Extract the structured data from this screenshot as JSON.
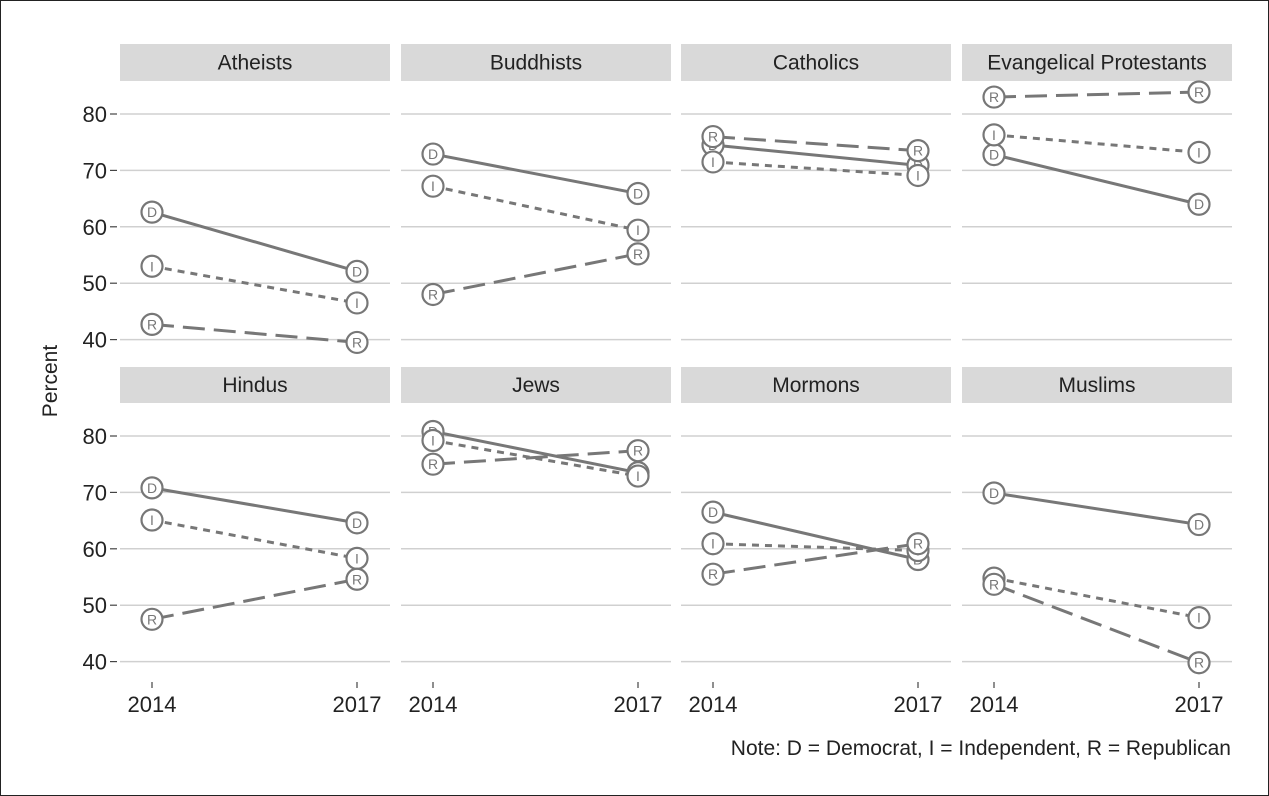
{
  "chart_data": {
    "type": "line",
    "ylabel": "Percent",
    "x": [
      "2014",
      "2017"
    ],
    "ylim": [
      40,
      85
    ],
    "yticks": [
      40,
      50,
      60,
      70,
      80
    ],
    "grid": true,
    "series_styles": {
      "D": {
        "dash": "",
        "color": "#777777"
      },
      "I": {
        "dash": "7,6",
        "color": "#777777"
      },
      "R": {
        "dash": "22,9",
        "color": "#777777"
      }
    },
    "panels": [
      {
        "title": "Atheists",
        "series": [
          {
            "name": "D",
            "values": [
              62.6,
              52.1
            ]
          },
          {
            "name": "I",
            "values": [
              53.0,
              46.5
            ]
          },
          {
            "name": "R",
            "values": [
              42.7,
              39.5
            ]
          }
        ]
      },
      {
        "title": "Buddhists",
        "series": [
          {
            "name": "D",
            "values": [
              72.9,
              65.9
            ]
          },
          {
            "name": "I",
            "values": [
              67.2,
              59.4
            ]
          },
          {
            "name": "R",
            "values": [
              48.0,
              55.2
            ]
          }
        ]
      },
      {
        "title": "Catholics",
        "series": [
          {
            "name": "D",
            "values": [
              74.5,
              70.9
            ]
          },
          {
            "name": "I",
            "values": [
              71.5,
              69.1
            ]
          },
          {
            "name": "R",
            "values": [
              76.0,
              73.5
            ]
          }
        ]
      },
      {
        "title": "Evangelical Protestants",
        "series": [
          {
            "name": "D",
            "values": [
              72.8,
              64.0
            ]
          },
          {
            "name": "I",
            "values": [
              76.3,
              73.2
            ]
          },
          {
            "name": "R",
            "values": [
              83.0,
              83.9
            ]
          }
        ]
      },
      {
        "title": "Hindus",
        "series": [
          {
            "name": "D",
            "values": [
              70.8,
              64.6
            ]
          },
          {
            "name": "I",
            "values": [
              65.1,
              58.3
            ]
          },
          {
            "name": "R",
            "values": [
              47.5,
              54.6
            ]
          }
        ]
      },
      {
        "title": "Jews",
        "series": [
          {
            "name": "D",
            "values": [
              80.8,
              73.5
            ]
          },
          {
            "name": "I",
            "values": [
              79.2,
              72.9
            ]
          },
          {
            "name": "R",
            "values": [
              75.0,
              77.4
            ]
          }
        ]
      },
      {
        "title": "Mormons",
        "series": [
          {
            "name": "D",
            "values": [
              66.5,
              58.1
            ]
          },
          {
            "name": "I",
            "values": [
              60.9,
              59.7
            ]
          },
          {
            "name": "R",
            "values": [
              55.5,
              60.9
            ]
          }
        ]
      },
      {
        "title": "Muslims",
        "series": [
          {
            "name": "D",
            "values": [
              69.9,
              64.3
            ]
          },
          {
            "name": "I",
            "values": [
              54.8,
              47.8
            ]
          },
          {
            "name": "R",
            "values": [
              53.7,
              39.8
            ]
          }
        ]
      }
    ]
  },
  "note": "Note: D = Democrat, I = Independent, R = Republican"
}
